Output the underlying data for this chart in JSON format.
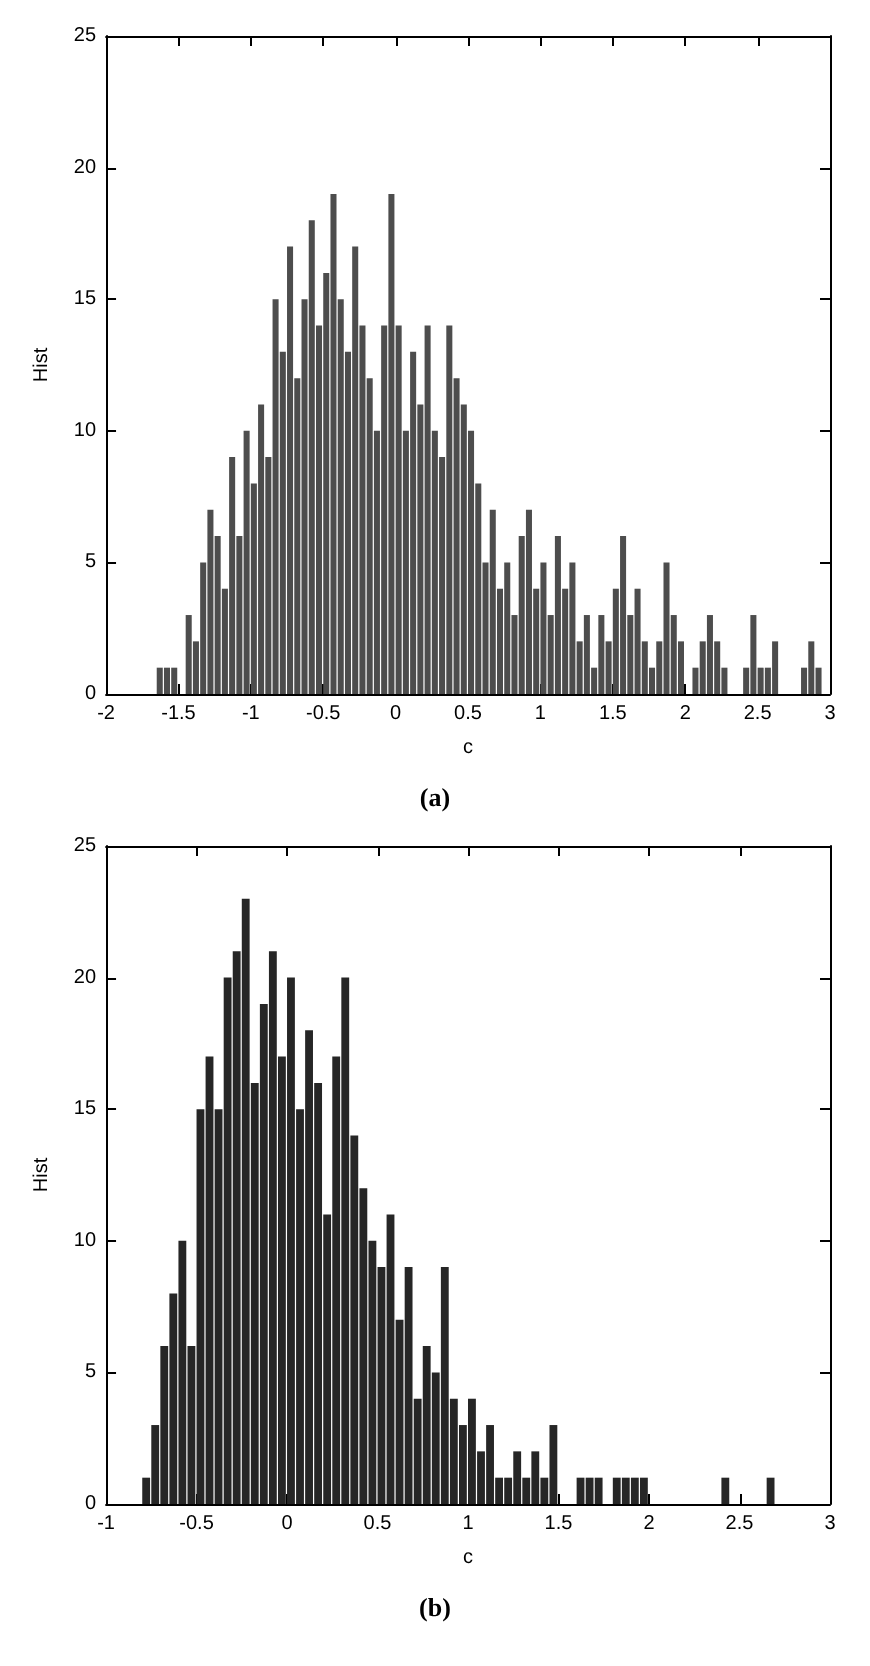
{
  "chart_data": [
    {
      "type": "histogram",
      "xlabel": "c",
      "ylabel": "Hist",
      "color": "#4d4d4d",
      "grid": false,
      "annotations": [
        "(a)"
      ],
      "xlim": [
        -2,
        3
      ],
      "xticks": [
        -2,
        -1.5,
        -1,
        -0.5,
        0,
        0.5,
        1,
        1.5,
        2,
        2.5,
        3
      ],
      "ylim": [
        0,
        25
      ],
      "yticks": [
        0,
        5,
        10,
        15,
        20,
        25
      ],
      "bins": [
        -1.65,
        -1.6,
        -1.55,
        -1.5,
        -1.45,
        -1.4,
        -1.35,
        -1.3,
        -1.25,
        -1.2,
        -1.15,
        -1.1,
        -1.05,
        -1,
        -0.95,
        -0.9,
        -0.85,
        -0.8,
        -0.75,
        -0.7,
        -0.65,
        -0.6,
        -0.55,
        -0.5,
        -0.45,
        -0.4,
        -0.35,
        -0.3,
        -0.25,
        -0.2,
        -0.15,
        -0.1,
        -0.05,
        0,
        0.05,
        0.1,
        0.15,
        0.2,
        0.25,
        0.3,
        0.35,
        0.4,
        0.45,
        0.5,
        0.55,
        0.6,
        0.65,
        0.7,
        0.75,
        0.8,
        0.85,
        0.9,
        0.95,
        1,
        1.05,
        1.1,
        1.15,
        1.2,
        1.25,
        1.3,
        1.35,
        1.4,
        1.45,
        1.5,
        1.55,
        1.6,
        1.65,
        1.7,
        1.75,
        1.8,
        1.85,
        1.9,
        1.95,
        2,
        2.05,
        2.1,
        2.15,
        2.2,
        2.25,
        2.3,
        2.35,
        2.4,
        2.45,
        2.5,
        2.55,
        2.6,
        2.65,
        2.7,
        2.75,
        2.8,
        2.85,
        2.9,
        2.95,
        3
      ],
      "values": [
        1,
        1,
        1,
        0,
        3,
        2,
        5,
        7,
        6,
        4,
        9,
        6,
        10,
        8,
        11,
        9,
        15,
        13,
        17,
        12,
        15,
        18,
        14,
        16,
        19,
        15,
        13,
        17,
        14,
        12,
        10,
        14,
        19,
        14,
        10,
        13,
        11,
        14,
        10,
        9,
        14,
        12,
        11,
        10,
        8,
        5,
        7,
        4,
        5,
        3,
        6,
        7,
        4,
        5,
        3,
        6,
        4,
        5,
        2,
        3,
        1,
        3,
        2,
        4,
        6,
        3,
        4,
        2,
        1,
        2,
        5,
        3,
        2,
        0,
        1,
        2,
        3,
        2,
        1,
        0,
        0,
        1,
        3,
        1,
        1,
        2,
        0,
        0,
        0,
        1,
        2,
        1,
        0
      ]
    },
    {
      "type": "histogram",
      "xlabel": "c",
      "ylabel": "Hist",
      "color": "#262626",
      "grid": false,
      "annotations": [
        "(b)"
      ],
      "xlim": [
        -1,
        3
      ],
      "xticks": [
        -1,
        -0.5,
        0,
        0.5,
        1,
        1.5,
        2,
        2.5,
        3
      ],
      "ylim": [
        0,
        25
      ],
      "yticks": [
        0,
        5,
        10,
        15,
        20,
        25
      ],
      "bins": [
        -0.8,
        -0.75,
        -0.7,
        -0.65,
        -0.6,
        -0.55,
        -0.5,
        -0.45,
        -0.4,
        -0.35,
        -0.3,
        -0.25,
        -0.2,
        -0.15,
        -0.1,
        -0.05,
        0,
        0.05,
        0.1,
        0.15,
        0.2,
        0.25,
        0.3,
        0.35,
        0.4,
        0.45,
        0.5,
        0.55,
        0.6,
        0.65,
        0.7,
        0.75,
        0.8,
        0.85,
        0.9,
        0.95,
        1,
        1.05,
        1.1,
        1.15,
        1.2,
        1.25,
        1.3,
        1.35,
        1.4,
        1.45,
        1.5,
        1.55,
        1.6,
        1.65,
        1.7,
        1.75,
        1.8,
        1.85,
        1.9,
        1.95,
        2,
        2.05,
        2.1,
        2.15,
        2.2,
        2.25,
        2.3,
        2.35,
        2.4,
        2.45,
        2.5,
        2.55,
        2.6,
        2.65,
        2.7
      ],
      "values": [
        1,
        3,
        6,
        8,
        10,
        6,
        15,
        17,
        15,
        20,
        21,
        23,
        16,
        19,
        21,
        17,
        20,
        15,
        18,
        16,
        11,
        17,
        20,
        14,
        12,
        10,
        9,
        11,
        7,
        9,
        4,
        6,
        5,
        9,
        4,
        3,
        4,
        2,
        3,
        1,
        1,
        2,
        1,
        2,
        1,
        3,
        0,
        0,
        1,
        1,
        1,
        0,
        1,
        1,
        1,
        1,
        0,
        0,
        0,
        0,
        0,
        0,
        0,
        0,
        1,
        0,
        0,
        0,
        0,
        1
      ]
    }
  ]
}
